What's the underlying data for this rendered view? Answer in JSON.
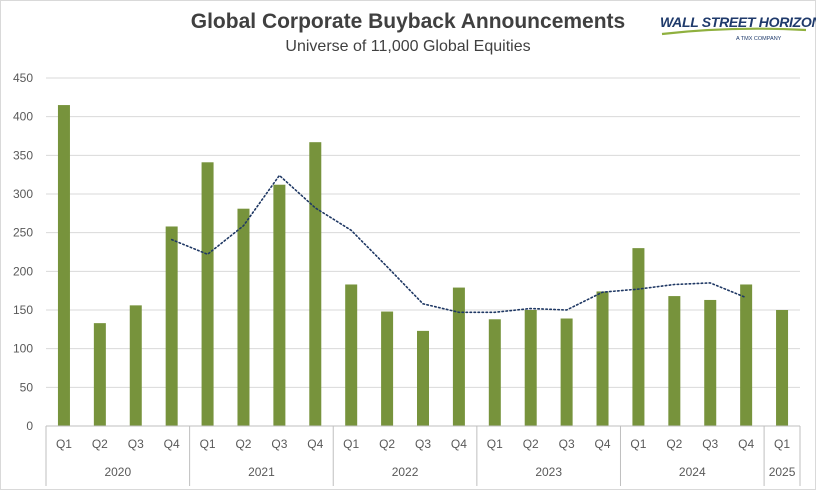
{
  "header": {
    "title": "Global Corporate Buyback Announcements",
    "subtitle": "Universe of 11,000 Global Equities"
  },
  "logo": {
    "main": "WALL STREET HORIZON",
    "sub": "A TMX COMPANY"
  },
  "colors": {
    "bar": "#77933c",
    "trend": "#1f3864",
    "grid": "#d9d9d9",
    "text": "#595959"
  },
  "chart_data": {
    "type": "bar",
    "title": "Global Corporate Buyback Announcements",
    "subtitle": "Universe of 11,000 Global Equities",
    "xlabel": "",
    "ylabel": "",
    "ylim": [
      0,
      450
    ],
    "yticks": [
      0,
      50,
      100,
      150,
      200,
      250,
      300,
      350,
      400,
      450
    ],
    "grid": true,
    "legend": "none",
    "categories": [
      "Q1",
      "Q2",
      "Q3",
      "Q4",
      "Q1",
      "Q2",
      "Q3",
      "Q4",
      "Q1",
      "Q2",
      "Q3",
      "Q4",
      "Q1",
      "Q2",
      "Q3",
      "Q4",
      "Q1",
      "Q2",
      "Q3",
      "Q4",
      "Q1"
    ],
    "groups": [
      {
        "label": "2020",
        "count": 4
      },
      {
        "label": "2021",
        "count": 4
      },
      {
        "label": "2022",
        "count": 4
      },
      {
        "label": "2023",
        "count": 4
      },
      {
        "label": "2024",
        "count": 4
      },
      {
        "label": "2025",
        "count": 1
      }
    ],
    "series": [
      {
        "type": "bar",
        "values": [
          415,
          133,
          156,
          258,
          341,
          281,
          312,
          367,
          183,
          148,
          123,
          179,
          138,
          150,
          139,
          174,
          230,
          168,
          163,
          183,
          150
        ]
      },
      {
        "type": "line",
        "style": "dotted",
        "values": [
          null,
          null,
          null,
          241,
          222,
          259,
          324,
          282,
          253,
          206,
          158,
          147,
          147,
          152,
          150,
          173,
          177,
          183,
          185,
          166,
          null
        ]
      }
    ]
  }
}
